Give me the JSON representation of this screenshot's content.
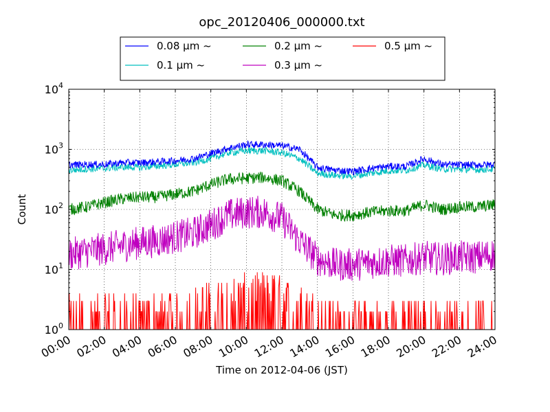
{
  "chart_data": {
    "type": "line",
    "title": "opc_20120406_000000.txt",
    "xlabel": "Time on 2012-04-06 (JST)",
    "ylabel": "Count",
    "yscale": "log",
    "ylim": [
      1,
      10000
    ],
    "xlim": [
      "00:00",
      "24:00"
    ],
    "x_tick_labels": [
      "00:00",
      "02:00",
      "04:00",
      "06:00",
      "08:00",
      "10:00",
      "12:00",
      "14:00",
      "16:00",
      "18:00",
      "20:00",
      "22:00",
      "24:00"
    ],
    "y_tick_labels": [
      {
        "base": "10",
        "exp": "0",
        "value": 1
      },
      {
        "base": "10",
        "exp": "1",
        "value": 10
      },
      {
        "base": "10",
        "exp": "2",
        "value": 100
      },
      {
        "base": "10",
        "exp": "3",
        "value": 1000
      },
      {
        "base": "10",
        "exp": "4",
        "value": 10000
      }
    ],
    "grid": true,
    "legend_placement": "top-center",
    "x": [
      "00:00",
      "01:00",
      "02:00",
      "03:00",
      "04:00",
      "05:00",
      "06:00",
      "07:00",
      "08:00",
      "09:00",
      "10:00",
      "11:00",
      "12:00",
      "13:00",
      "14:00",
      "15:00",
      "16:00",
      "17:00",
      "18:00",
      "19:00",
      "20:00",
      "21:00",
      "22:00",
      "23:00",
      "24:00"
    ],
    "series": [
      {
        "name": "0.08 μm ~",
        "color": "#0000ff",
        "values": [
          550,
          560,
          560,
          600,
          600,
          620,
          650,
          700,
          850,
          1050,
          1200,
          1200,
          1150,
          1000,
          500,
          450,
          430,
          480,
          520,
          520,
          700,
          560,
          550,
          550,
          560
        ]
      },
      {
        "name": "0.1 μm ~",
        "color": "#00bfbf",
        "values": [
          450,
          470,
          480,
          510,
          500,
          530,
          560,
          600,
          700,
          880,
          950,
          950,
          880,
          700,
          400,
          370,
          360,
          400,
          440,
          450,
          550,
          470,
          470,
          460,
          470
        ]
      },
      {
        "name": "0.2 μm ~",
        "color": "#008000",
        "values": [
          100,
          110,
          130,
          150,
          160,
          160,
          180,
          200,
          260,
          320,
          330,
          340,
          300,
          200,
          100,
          80,
          80,
          90,
          95,
          95,
          120,
          100,
          110,
          110,
          120
        ]
      },
      {
        "name": "0.3 μm ~",
        "color": "#bf00bf",
        "values": [
          18,
          20,
          22,
          25,
          28,
          30,
          35,
          40,
          55,
          80,
          90,
          90,
          70,
          30,
          15,
          12,
          12,
          13,
          14,
          14,
          16,
          15,
          16,
          16,
          18
        ]
      },
      {
        "name": "0.5 μm ~",
        "color": "#ff0000",
        "values": [
          1.5,
          1.5,
          1.5,
          1.5,
          1.5,
          1.6,
          1.6,
          1.8,
          2.5,
          3,
          3.5,
          3.5,
          3,
          2,
          1.5,
          1.2,
          1.2,
          1.2,
          1.2,
          1.2,
          1.2,
          1.2,
          1.2,
          1.2,
          1.2
        ]
      }
    ]
  }
}
